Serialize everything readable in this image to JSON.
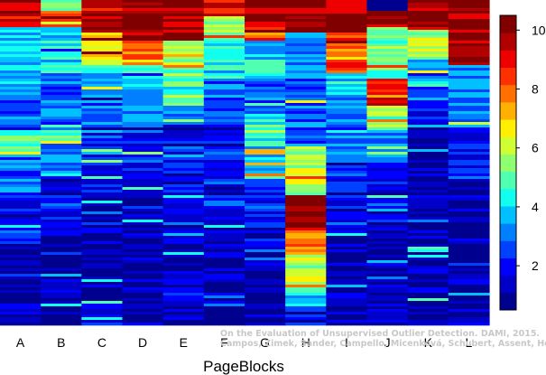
{
  "chart_data": {
    "type": "heatmap",
    "xlabel": "PageBlocks",
    "columns": [
      "A",
      "B",
      "C",
      "D",
      "E",
      "F",
      "G",
      "H",
      "I",
      "J",
      "K",
      "L"
    ],
    "colorbar": {
      "range": [
        0.5,
        10.5
      ],
      "ticks": [
        "2",
        "4",
        "6",
        "8",
        "10"
      ],
      "colors": [
        "#00008f",
        "#0000c8",
        "#0000ff",
        "#0040ff",
        "#0080ff",
        "#00c0ff",
        "#10ffef",
        "#50ffaf",
        "#8fff70",
        "#cfff30",
        "#ffef00",
        "#ffb000",
        "#ff7000",
        "#ff3000",
        "#ef0000",
        "#b00000",
        "#800000"
      ]
    },
    "column_profiles": [
      {
        "column": "A",
        "segments": [
          [
            0.0,
            10
          ],
          [
            0.04,
            9
          ],
          [
            0.08,
            4
          ],
          [
            0.28,
            3
          ],
          [
            0.4,
            5
          ],
          [
            0.46,
            3
          ],
          [
            0.6,
            2
          ],
          [
            0.75,
            1
          ]
        ]
      },
      {
        "column": "B",
        "segments": [
          [
            0.0,
            6
          ],
          [
            0.03,
            8
          ],
          [
            0.08,
            4
          ],
          [
            0.22,
            3
          ],
          [
            0.38,
            5
          ],
          [
            0.44,
            3
          ],
          [
            0.55,
            2
          ],
          [
            0.72,
            1
          ]
        ]
      },
      {
        "column": "C",
        "segments": [
          [
            0.0,
            10
          ],
          [
            0.1,
            7
          ],
          [
            0.2,
            4
          ],
          [
            0.3,
            3
          ],
          [
            0.38,
            2
          ],
          [
            0.6,
            1
          ]
        ]
      },
      {
        "column": "D",
        "segments": [
          [
            0.0,
            10
          ],
          [
            0.12,
            8
          ],
          [
            0.2,
            4
          ],
          [
            0.3,
            3
          ],
          [
            0.38,
            2
          ],
          [
            0.6,
            1
          ]
        ]
      },
      {
        "column": "E",
        "segments": [
          [
            0.0,
            10
          ],
          [
            0.12,
            6
          ],
          [
            0.2,
            5
          ],
          [
            0.32,
            3
          ],
          [
            0.38,
            2
          ],
          [
            0.65,
            1
          ]
        ]
      },
      {
        "column": "F",
        "segments": [
          [
            0.0,
            9
          ],
          [
            0.05,
            5
          ],
          [
            0.12,
            4
          ],
          [
            0.25,
            3
          ],
          [
            0.38,
            2
          ],
          [
            0.65,
            1
          ]
        ]
      },
      {
        "column": "G",
        "segments": [
          [
            0.0,
            10
          ],
          [
            0.06,
            8
          ],
          [
            0.12,
            4
          ],
          [
            0.25,
            3
          ],
          [
            0.35,
            5
          ],
          [
            0.42,
            4
          ],
          [
            0.55,
            2
          ],
          [
            0.7,
            1
          ]
        ]
      },
      {
        "column": "H",
        "segments": [
          [
            0.0,
            10
          ],
          [
            0.1,
            3
          ],
          [
            0.3,
            3
          ],
          [
            0.45,
            6
          ],
          [
            0.6,
            10
          ],
          [
            0.7,
            8
          ],
          [
            0.78,
            6
          ],
          [
            0.88,
            4
          ],
          [
            0.94,
            2
          ]
        ]
      },
      {
        "column": "I",
        "segments": [
          [
            0.0,
            10
          ],
          [
            0.1,
            8
          ],
          [
            0.22,
            4
          ],
          [
            0.3,
            3
          ],
          [
            0.5,
            2
          ],
          [
            0.7,
            1
          ]
        ]
      },
      {
        "column": "J",
        "segments": [
          [
            0.0,
            1
          ],
          [
            0.03,
            10
          ],
          [
            0.08,
            5
          ],
          [
            0.25,
            9
          ],
          [
            0.32,
            6
          ],
          [
            0.4,
            3
          ],
          [
            0.5,
            2
          ],
          [
            0.7,
            1
          ]
        ]
      },
      {
        "column": "K",
        "segments": [
          [
            0.0,
            10
          ],
          [
            0.08,
            6
          ],
          [
            0.18,
            3
          ],
          [
            0.28,
            2
          ],
          [
            0.42,
            1
          ]
        ]
      },
      {
        "column": "L",
        "segments": [
          [
            0.0,
            10
          ],
          [
            0.2,
            3
          ],
          [
            0.4,
            2
          ],
          [
            0.55,
            1
          ]
        ]
      }
    ]
  },
  "watermark": {
    "line1": "On the Evaluation of Unsupervised Outlier Detection. DAMI, 2015.",
    "line2": "Campos, Zimek, Sander, Campello, Micenková, Schubert, Assent, Houle"
  }
}
